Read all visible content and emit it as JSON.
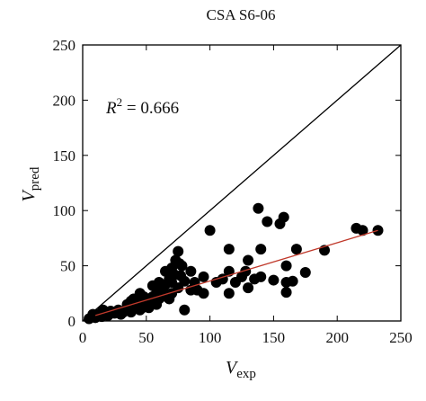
{
  "chart_data": {
    "type": "scatter",
    "title": "CSA S6-06",
    "x_label": {
      "main": "V",
      "sub": "exp"
    },
    "y_label": {
      "main": "V",
      "sub": "pred"
    },
    "annotation": {
      "main": "R",
      "sup": "2",
      "rest": " = 0.666"
    },
    "xlim": [
      0,
      250
    ],
    "ylim": [
      0,
      250
    ],
    "xticks": [
      0,
      50,
      100,
      150,
      200,
      250
    ],
    "yticks": [
      0,
      50,
      100,
      150,
      200,
      250
    ],
    "color": "#000000",
    "fit_line": {
      "x": [
        10,
        232
      ],
      "y": [
        5,
        82
      ],
      "color": "#c0392b"
    },
    "x": [
      232,
      220,
      215,
      190,
      175,
      168,
      165,
      160,
      160,
      158,
      160,
      155,
      145,
      138,
      140,
      140,
      135,
      130,
      128,
      125,
      115,
      115,
      115,
      110,
      105,
      100,
      95,
      90,
      85,
      80,
      78,
      77,
      76,
      75,
      73,
      72,
      70,
      70,
      68,
      65,
      65,
      62,
      60,
      60,
      58,
      55,
      55,
      52,
      50,
      50,
      48,
      47,
      45,
      45,
      42,
      40,
      40,
      38,
      35,
      35,
      32,
      30,
      28,
      25,
      22,
      20,
      18,
      16,
      15,
      12,
      10,
      8,
      5,
      80,
      75,
      65,
      85,
      95,
      58,
      62,
      70,
      45,
      52,
      38,
      68,
      88,
      150,
      120,
      130
    ],
    "y": [
      82,
      82,
      84,
      64,
      44,
      65,
      36,
      35,
      50,
      94,
      26,
      88,
      90,
      102,
      65,
      40,
      38,
      55,
      45,
      40,
      65,
      25,
      45,
      38,
      35,
      82,
      40,
      28,
      28,
      36,
      50,
      41,
      52,
      63,
      55,
      42,
      48,
      35,
      38,
      33,
      25,
      30,
      35,
      20,
      25,
      22,
      32,
      18,
      15,
      20,
      22,
      12,
      18,
      10,
      15,
      20,
      12,
      8,
      10,
      15,
      8,
      6,
      10,
      7,
      9,
      5,
      8,
      10,
      4,
      6,
      3,
      6,
      2,
      10,
      30,
      45,
      45,
      25,
      15,
      22,
      25,
      25,
      12,
      18,
      20,
      35,
      37,
      35,
      30
    ]
  }
}
